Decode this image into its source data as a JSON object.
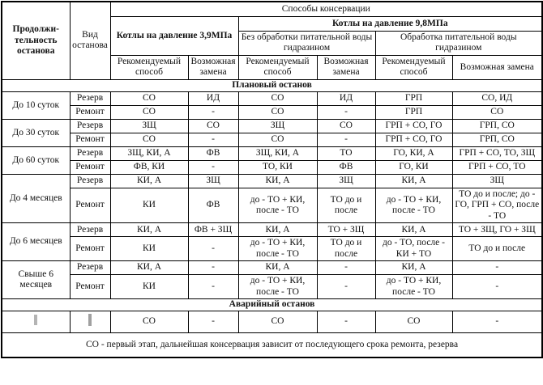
{
  "header": {
    "duration": "Продолжи-тельность останова",
    "stop_type": "Вид останова",
    "conservation_methods": "Способы консервации",
    "boilers_3_9": "Котлы на давление 3,9МПа",
    "boilers_9_8": "Котлы на давление 9,8МПа",
    "without_hydrazine": "Без обработки питательной воды гидразином",
    "with_hydrazine": "Обработка питательной воды гидразином",
    "recommended_1": "Рекомендуемый способ",
    "alternative_1": "Возможная замена",
    "recommended_2": "Рекомендуемый способ",
    "alternative_2": "Возможная замена",
    "recommended_3": "Рекомендуемый способ",
    "alternative_3": "Возможная замена"
  },
  "sections": {
    "planned": "Плановый останов",
    "emergency": "Аварийный останов"
  },
  "groups": [
    {
      "duration": "До 10 суток",
      "rows": [
        {
          "type": "Резерв",
          "cells": [
            "СО",
            "ИД",
            "СО",
            "ИД",
            "ГРП",
            "СО, ИД"
          ]
        },
        {
          "type": "Ремонт",
          "cells": [
            "СО",
            "-",
            "СО",
            "-",
            "ГРП",
            "СО"
          ]
        }
      ]
    },
    {
      "duration": "До 30 суток",
      "rows": [
        {
          "type": "Резерв",
          "cells": [
            "ЗЩ",
            "СО",
            "ЗЩ",
            "СО",
            "ГРП + СО, ГО",
            "ГРП, СО"
          ]
        },
        {
          "type": "Ремонт",
          "cells": [
            "СО",
            "-",
            "СО",
            "-",
            "ГРП + СО, ГО",
            "ГРП, СО"
          ]
        }
      ]
    },
    {
      "duration": "До 60 суток",
      "rows": [
        {
          "type": "Резерв",
          "cells": [
            "ЗЩ, КИ, А",
            "ФВ",
            "ЗЩ, КИ, А",
            "ТО",
            "ГО, КИ, А",
            "ГРП + СО, ТО, ЗЩ"
          ]
        },
        {
          "type": "Ремонт",
          "cells": [
            "ФВ, КИ",
            "-",
            "ТО, КИ",
            "ФВ",
            "ГО, КИ",
            "ГРП + СО, ТО"
          ]
        }
      ]
    },
    {
      "duration": "До 4 месяцев",
      "rows": [
        {
          "type": "Резерв",
          "cells": [
            "КИ, А",
            "ЗЩ",
            "КИ, А",
            "ЗЩ",
            "КИ, А",
            "ЗЩ"
          ]
        },
        {
          "type": "Ремонт",
          "cells": [
            "КИ",
            "ФВ",
            "до - ТО + КИ, после - ТО",
            "ТО до и после",
            "до - ТО + КИ, после - ТО",
            "ТО до и после; до - ГО, ГРП + СО, после - ТО"
          ]
        }
      ]
    },
    {
      "duration": "До 6 месяцев",
      "rows": [
        {
          "type": "Резерв",
          "cells": [
            "КИ, А",
            "ФВ + ЗЩ",
            "КИ, А",
            "ТО + ЗЩ",
            "КИ, А",
            "ТО + ЗЩ, ГО + ЗЩ"
          ]
        },
        {
          "type": "Ремонт",
          "cells": [
            "КИ",
            "-",
            "до - ТО + КИ, после - ТО",
            "ТО до и после",
            "до - ТО, после - КИ + ТО",
            "ТО до и после"
          ]
        }
      ]
    },
    {
      "duration": "Свыше 6 месяцев",
      "rows": [
        {
          "type": "Резерв",
          "cells": [
            "КИ, А",
            "-",
            "КИ, А",
            "-",
            "КИ, А",
            "-"
          ]
        },
        {
          "type": "Ремонт",
          "cells": [
            "КИ",
            "-",
            "до - ТО + КИ, после - ТО",
            "-",
            "до - ТО + КИ, после - ТО",
            "-"
          ]
        }
      ]
    }
  ],
  "emergency_row": {
    "cells": [
      "СО",
      "-",
      "СО",
      "-",
      "СО",
      "-"
    ]
  },
  "footnote": "СО - первый этап, дальнейшая консервация зависит от последующего срока ремонта, резерва",
  "colors": {
    "border": "#000000",
    "text": "#111111",
    "background": "#ffffff",
    "artifact_gray": "#b4b4b4"
  }
}
